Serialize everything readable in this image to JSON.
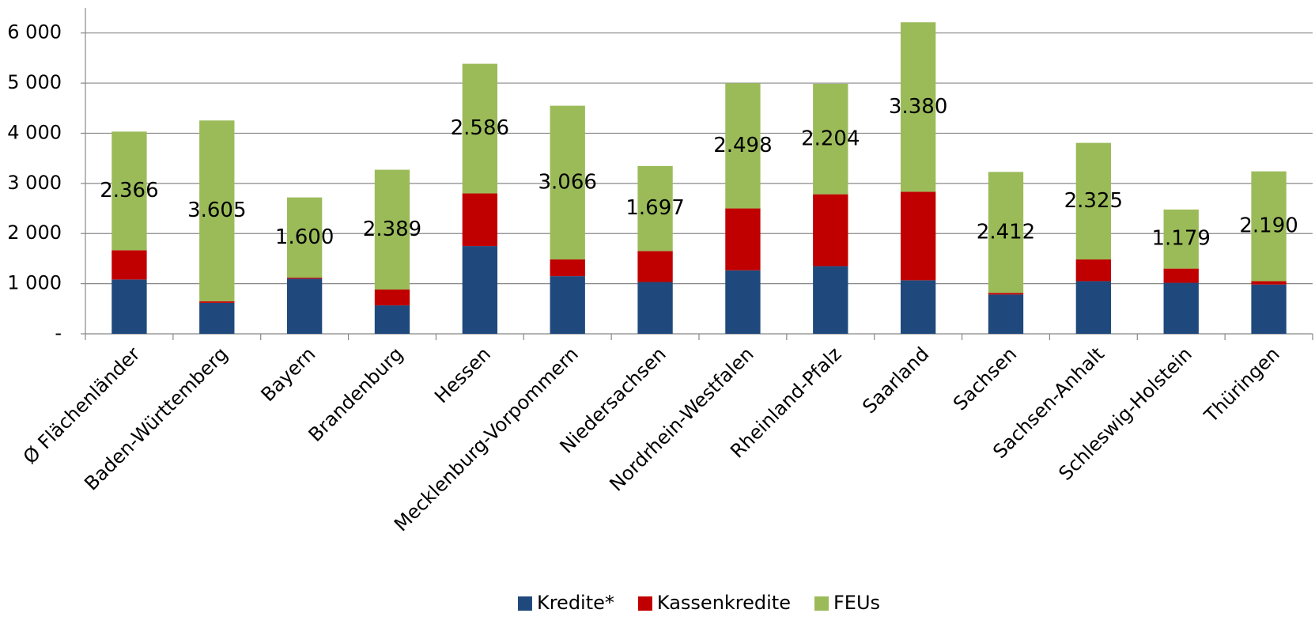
{
  "chart_data": {
    "type": "stacked_bar",
    "categories": [
      "Ø Flächenländer",
      "Baden-Württemberg",
      "Bayern",
      "Brandenburg",
      "Hessen",
      "Mecklenburg-Vorpommern",
      "Niedersachsen",
      "Nordrhein-Westfalen",
      "Rheinland-Pfalz",
      "Saarland",
      "Sachsen",
      "Sachsen-Anhalt",
      "Schleswig-Holstein",
      "Thüringen"
    ],
    "series": [
      {
        "name": "Kredite*",
        "color": "#1f497d",
        "values": [
          1083,
          617,
          1100,
          567,
          1750,
          1150,
          1033,
          1267,
          1350,
          1067,
          783,
          1050,
          1017,
          983
        ]
      },
      {
        "name": "Kassenkredite",
        "color": "#c00000",
        "values": [
          584,
          33,
          20,
          316,
          1050,
          333,
          617,
          1233,
          1433,
          1766,
          34,
          433,
          283,
          67
        ]
      },
      {
        "name": "FEUs",
        "color": "#9bbb59",
        "values": [
          2366,
          3605,
          1600,
          2389,
          2586,
          3066,
          1697,
          2498,
          2204,
          3380,
          2412,
          2325,
          1179,
          2190
        ],
        "value_labels": [
          "2.366",
          "3.605",
          "1.600",
          "2.389",
          "2.586",
          "3.066",
          "1.697",
          "2.498",
          "2.204",
          "3.380",
          "2.412",
          "2.325",
          "1.179",
          "2.190"
        ]
      }
    ],
    "ylim": [
      0,
      6500
    ],
    "yticks": [
      {
        "value": 0,
        "label": "-"
      },
      {
        "value": 1000,
        "label": "1 000"
      },
      {
        "value": 2000,
        "label": "2 000"
      },
      {
        "value": 3000,
        "label": "3 000"
      },
      {
        "value": 4000,
        "label": "4 000"
      },
      {
        "value": 5000,
        "label": "5 000"
      },
      {
        "value": 6000,
        "label": "6 000"
      }
    ],
    "grid": true,
    "legend": "bottom"
  }
}
